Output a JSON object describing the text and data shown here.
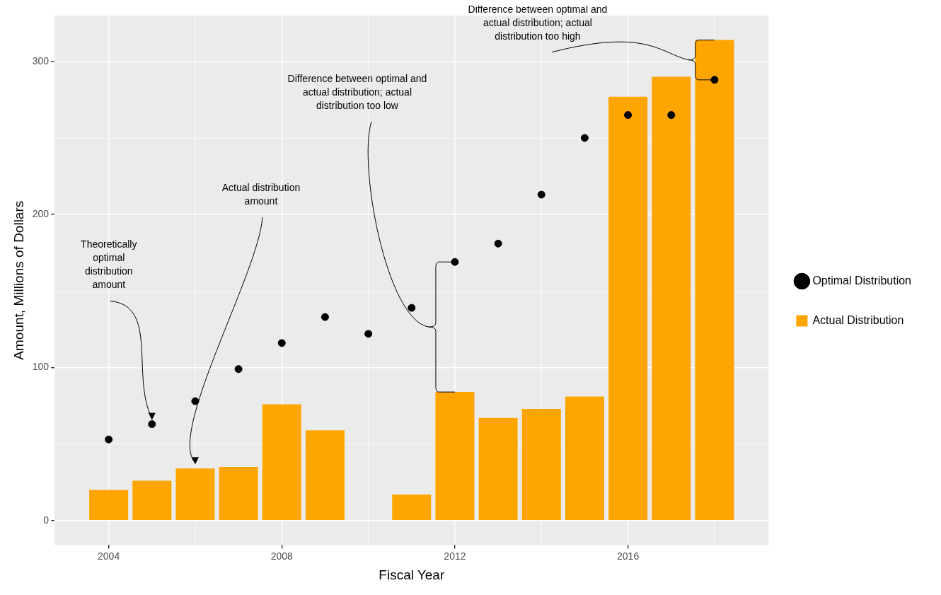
{
  "chart_data": {
    "type": "bar",
    "xlabel": "Fiscal Year",
    "ylabel": "Amount, Millions of Dollars",
    "x": [
      2004,
      2005,
      2006,
      2007,
      2008,
      2009,
      2010,
      2011,
      2012,
      2013,
      2014,
      2015,
      2016,
      2017,
      2018
    ],
    "series": [
      {
        "name": "Optimal Distribution",
        "type": "scatter",
        "color": "#000000",
        "values": [
          53,
          63,
          78,
          99,
          116,
          133,
          122,
          139,
          169,
          181,
          213,
          250,
          265,
          265,
          288
        ]
      },
      {
        "name": "Actual Distribution",
        "color": "#ffa500",
        "values": [
          20,
          26,
          34,
          35,
          76,
          59,
          null,
          17,
          84,
          67,
          73,
          81,
          277,
          290,
          314
        ]
      }
    ],
    "xlim": [
      2002.75,
      2019.25
    ],
    "xticks": [
      2004,
      {
        "value": 2006,
        "label": null
      },
      2008,
      {
        "value": 2010,
        "label": null
      },
      2012,
      {
        "value": 2014,
        "label": null
      },
      2016,
      {
        "value": 2018,
        "label": null
      }
    ],
    "ylim": [
      -16,
      330
    ],
    "yticks": [
      0,
      {
        "value": 50,
        "label": null
      },
      100,
      {
        "value": 150,
        "label": null
      },
      200,
      {
        "value": 250,
        "label": null
      },
      300
    ],
    "grid": true,
    "legend": "right",
    "marker": "circle",
    "annotations": [
      {
        "text": "Theoretically optimal distribution amount",
        "x": 2005,
        "y": 63
      },
      {
        "text": "Actual distribution amount",
        "x": 2006,
        "y": 34
      },
      "Difference between optimal and actual distribution; actual distribution too low",
      "Difference between optimal and actual distribution; actual distribution too high"
    ]
  }
}
